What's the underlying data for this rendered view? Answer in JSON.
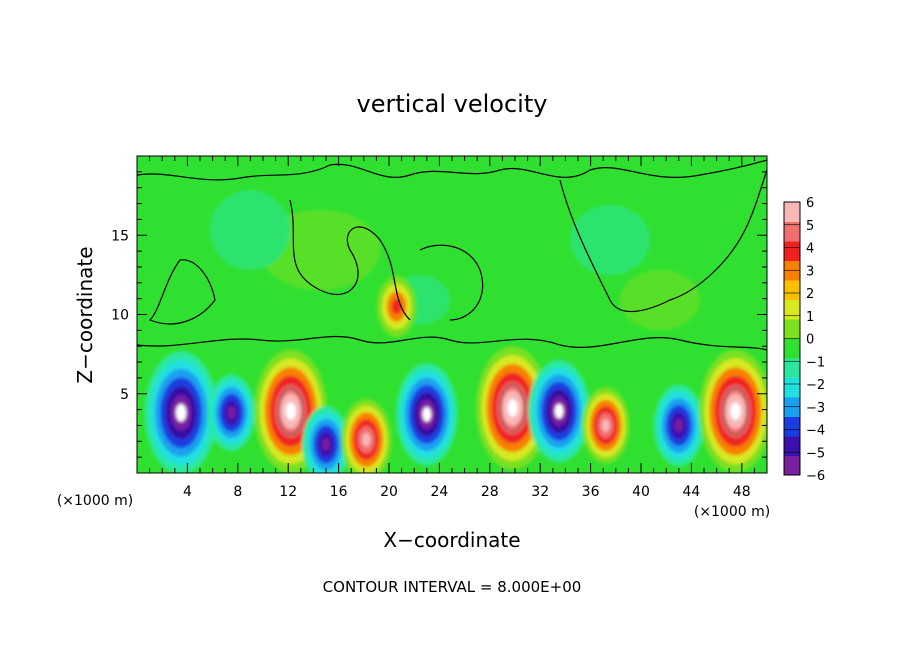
{
  "chart_data": {
    "type": "heatmap",
    "title": "vertical velocity",
    "xlabel": "X−coordinate",
    "ylabel": "Z−coordinate",
    "x_unit_left": "(×1000 m)",
    "x_unit_right": "(×1000 m)",
    "footer": "CONTOUR INTERVAL = 8.000E+00",
    "xlim": [
      0,
      50
    ],
    "ylim": [
      0,
      20
    ],
    "xticks": [
      4,
      8,
      12,
      16,
      20,
      24,
      28,
      32,
      36,
      40,
      44,
      48
    ],
    "xtick_labels": [
      "4",
      "8",
      "12",
      "16",
      "20",
      "24",
      "28",
      "32",
      "36",
      "40",
      "44",
      "48"
    ],
    "yticks": [
      5,
      10,
      15
    ],
    "ytick_labels": [
      "5",
      "10",
      "15"
    ],
    "colorbar": {
      "min": -6,
      "max": 6,
      "tick_values": [
        6,
        5,
        4,
        3,
        2,
        1,
        0,
        -1,
        -2,
        -3,
        -4,
        -5,
        -6
      ],
      "tick_labels": [
        "6",
        "5",
        "4",
        "3",
        "2",
        "1",
        "0",
        "−1",
        "−2",
        "−3",
        "−4",
        "−5",
        "−6"
      ],
      "colors": [
        "#7a1fa0",
        "#3a0fb0",
        "#1a3ce0",
        "#1aa0f0",
        "#20e0e0",
        "#2ae8a0",
        "#30e030",
        "#7ae020",
        "#d8e820",
        "#f8c000",
        "#f88000",
        "#f02020",
        "#f07070",
        "#f8b8b8"
      ]
    },
    "cells": [
      {
        "x": 3.5,
        "z": 3.8,
        "w": -16
      },
      {
        "x": 7.5,
        "z": 3.8,
        "w": -7
      },
      {
        "x": 12.2,
        "z": 3.9,
        "w": 16
      },
      {
        "x": 15.0,
        "z": 1.8,
        "w": -7
      },
      {
        "x": 18.2,
        "z": 2.1,
        "w": 8
      },
      {
        "x": 23.0,
        "z": 3.7,
        "w": -12
      },
      {
        "x": 29.8,
        "z": 4.1,
        "w": 16
      },
      {
        "x": 33.5,
        "z": 3.9,
        "w": -12
      },
      {
        "x": 37.2,
        "z": 3.0,
        "w": 7
      },
      {
        "x": 43.0,
        "z": 3.0,
        "w": -8
      },
      {
        "x": 47.5,
        "z": 3.9,
        "w": 16
      },
      {
        "x": 20.6,
        "z": 10.5,
        "w": 4
      }
    ]
  }
}
